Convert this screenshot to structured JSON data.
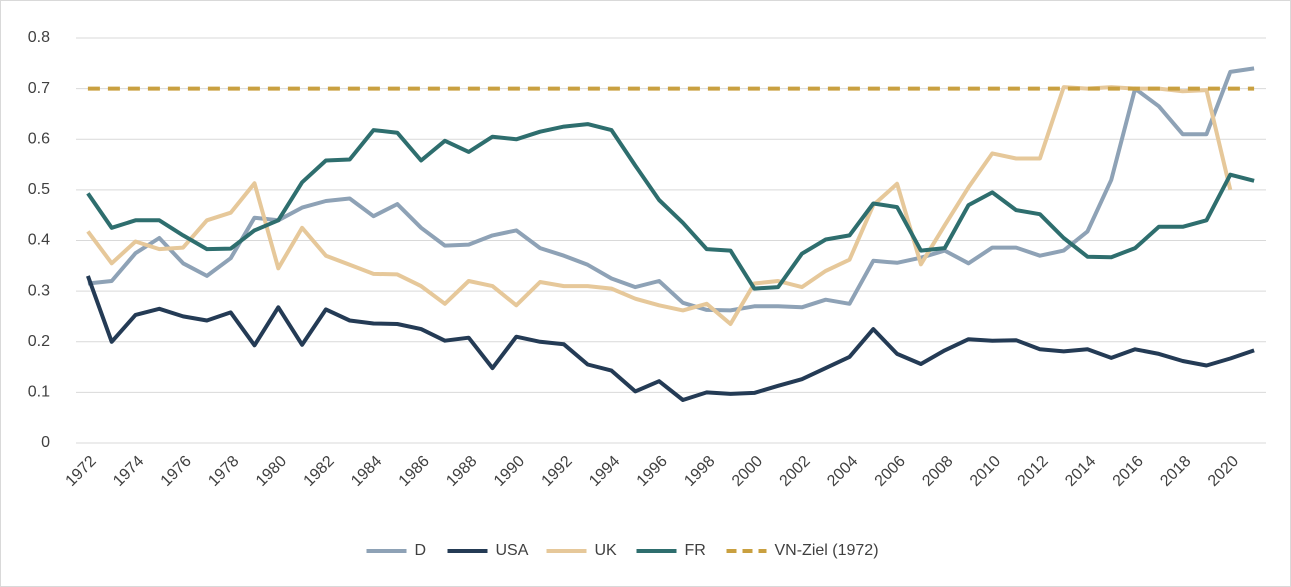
{
  "chart_data": {
    "type": "line",
    "x": [
      1972,
      1973,
      1974,
      1975,
      1976,
      1977,
      1978,
      1979,
      1980,
      1981,
      1982,
      1983,
      1984,
      1985,
      1986,
      1987,
      1988,
      1989,
      1990,
      1991,
      1992,
      1993,
      1994,
      1995,
      1996,
      1997,
      1998,
      1999,
      2000,
      2001,
      2002,
      2003,
      2004,
      2005,
      2006,
      2007,
      2008,
      2009,
      2010,
      2011,
      2012,
      2013,
      2014,
      2015,
      2016,
      2017,
      2018,
      2019,
      2020,
      2021
    ],
    "xlim": [
      1971.5,
      2021.5
    ],
    "xticks": [
      1972,
      1974,
      1976,
      1978,
      1980,
      1982,
      1984,
      1986,
      1988,
      1990,
      1992,
      1994,
      1996,
      1998,
      2000,
      2002,
      2004,
      2006,
      2008,
      2010,
      2012,
      2014,
      2016,
      2018,
      2020
    ],
    "ylim": [
      0,
      0.8
    ],
    "yticks": [
      0,
      0.1,
      0.2,
      0.3,
      0.4,
      0.5,
      0.6,
      0.7,
      0.8
    ],
    "grid": true,
    "legend": "bottom",
    "series": [
      {
        "name": "D",
        "color": "#8ea2b6",
        "dash": false,
        "values": [
          0.315,
          0.32,
          0.375,
          0.405,
          0.355,
          0.33,
          0.365,
          0.445,
          0.44,
          0.465,
          0.478,
          0.483,
          0.448,
          0.472,
          0.425,
          0.39,
          0.392,
          0.41,
          0.42,
          0.385,
          0.37,
          0.352,
          0.325,
          0.308,
          0.32,
          0.277,
          0.263,
          0.262,
          0.27,
          0.27,
          0.268,
          0.283,
          0.275,
          0.36,
          0.356,
          0.366,
          0.38,
          0.355,
          0.386,
          0.386,
          0.37,
          0.38,
          0.418,
          0.52,
          0.7,
          0.665,
          0.61,
          0.61,
          0.733,
          0.74
        ]
      },
      {
        "name": "USA",
        "color": "#243b55",
        "dash": false,
        "values": [
          0.33,
          0.2,
          0.253,
          0.265,
          0.25,
          0.242,
          0.258,
          0.193,
          0.268,
          0.194,
          0.264,
          0.242,
          0.236,
          0.235,
          0.225,
          0.202,
          0.208,
          0.148,
          0.21,
          0.2,
          0.195,
          0.155,
          0.143,
          0.102,
          0.122,
          0.085,
          0.1,
          0.097,
          0.099,
          0.113,
          0.126,
          0.148,
          0.17,
          0.225,
          0.176,
          0.156,
          0.183,
          0.205,
          0.202,
          0.203,
          0.185,
          0.181,
          0.185,
          0.168,
          0.185,
          0.176,
          0.162,
          0.153,
          0.167,
          0.183
        ]
      },
      {
        "name": "UK",
        "color": "#e6c89a",
        "dash": false,
        "values": [
          0.418,
          0.355,
          0.398,
          0.383,
          0.386,
          0.44,
          0.455,
          0.513,
          0.345,
          0.425,
          0.37,
          0.352,
          0.334,
          0.333,
          0.31,
          0.275,
          0.32,
          0.31,
          0.272,
          0.318,
          0.31,
          0.31,
          0.305,
          0.285,
          0.272,
          0.262,
          0.275,
          0.235,
          0.315,
          0.32,
          0.308,
          0.34,
          0.362,
          0.47,
          0.512,
          0.353,
          0.43,
          0.505,
          0.572,
          0.562,
          0.562,
          0.703,
          0.7,
          0.703,
          0.7,
          0.7,
          0.695,
          0.697,
          0.5,
          null
        ]
      },
      {
        "name": "FR",
        "color": "#2e6e6e",
        "dash": false,
        "values": [
          0.493,
          0.425,
          0.44,
          0.44,
          0.41,
          0.383,
          0.384,
          0.42,
          0.44,
          0.515,
          0.558,
          0.56,
          0.618,
          0.613,
          0.558,
          0.597,
          0.575,
          0.605,
          0.6,
          0.615,
          0.625,
          0.63,
          0.618,
          0.548,
          0.48,
          0.435,
          0.383,
          0.38,
          0.305,
          0.308,
          0.374,
          0.402,
          0.41,
          0.473,
          0.466,
          0.38,
          0.385,
          0.47,
          0.495,
          0.46,
          0.452,
          0.405,
          0.368,
          0.367,
          0.385,
          0.427,
          0.427,
          0.44,
          0.53,
          0.518
        ]
      },
      {
        "name": "VN-Ziel (1972)",
        "color": "#c9a040",
        "dash": true,
        "values": [
          0.7,
          0.7,
          0.7,
          0.7,
          0.7,
          0.7,
          0.7,
          0.7,
          0.7,
          0.7,
          0.7,
          0.7,
          0.7,
          0.7,
          0.7,
          0.7,
          0.7,
          0.7,
          0.7,
          0.7,
          0.7,
          0.7,
          0.7,
          0.7,
          0.7,
          0.7,
          0.7,
          0.7,
          0.7,
          0.7,
          0.7,
          0.7,
          0.7,
          0.7,
          0.7,
          0.7,
          0.7,
          0.7,
          0.7,
          0.7,
          0.7,
          0.7,
          0.7,
          0.7,
          0.7,
          0.7,
          0.7,
          0.7,
          0.7,
          0.7
        ]
      }
    ]
  }
}
